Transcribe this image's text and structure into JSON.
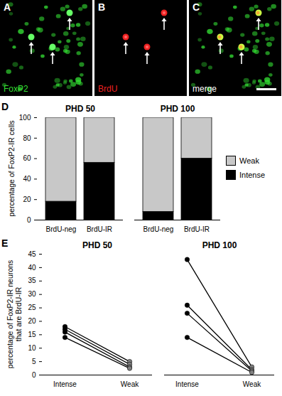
{
  "image_panels": [
    {
      "letter": "A",
      "label": "FoxP2",
      "color": "#33dd33"
    },
    {
      "letter": "B",
      "label": "BrdU",
      "color": "#ee2222"
    },
    {
      "letter": "C",
      "label": "merge",
      "color": "#ffffff"
    }
  ],
  "chart_data": [
    {
      "panel": "D",
      "type": "bar",
      "stacked": true,
      "ylabel": [
        "percentage of FoxP2-IR cells"
      ],
      "ylim": [
        0,
        100
      ],
      "yticks": [
        0,
        20,
        40,
        60,
        80,
        100
      ],
      "legend": "right",
      "facets": [
        {
          "title": "PHD 50",
          "categories": [
            "BrdU-neg",
            "BrdU-IR"
          ],
          "series": [
            {
              "name": "Weak",
              "color": "#c8c8c8",
              "values": [
                82,
                44
              ]
            },
            {
              "name": "Intense",
              "color": "#000000",
              "values": [
                18,
                56
              ]
            }
          ]
        },
        {
          "title": "PHD 100",
          "categories": [
            "BrdU-neg",
            "BrdU-IR"
          ],
          "series": [
            {
              "name": "Weak",
              "color": "#c8c8c8",
              "values": [
                92,
                40
              ]
            },
            {
              "name": "Intense",
              "color": "#000000",
              "values": [
                8,
                60
              ]
            }
          ]
        }
      ]
    },
    {
      "panel": "E",
      "type": "line",
      "marker": "circle",
      "ylabel": [
        "percentage of FoxP2-IR neurons",
        "that are BrdU-IR"
      ],
      "ylim": [
        0,
        45
      ],
      "yticks": [
        0,
        5,
        10,
        15,
        20,
        25,
        30,
        35,
        40,
        45
      ],
      "colors": [
        "#000000",
        "#808080"
      ],
      "facets": [
        {
          "title": "PHD 50",
          "categories": [
            "Intense",
            "Weak"
          ],
          "series": [
            {
              "color": "#000000",
              "values": [
                18,
                5
              ]
            },
            {
              "color": "#000000",
              "values": [
                17,
                4
              ]
            },
            {
              "color": "#000000",
              "values": [
                16,
                3
              ]
            },
            {
              "color": "#000000",
              "values": [
                14,
                2.5
              ]
            }
          ]
        },
        {
          "title": "PHD 100",
          "categories": [
            "Intense",
            "Weak"
          ],
          "series": [
            {
              "color": "#000000",
              "values": [
                43,
                3
              ]
            },
            {
              "color": "#000000",
              "values": [
                26,
                2
              ]
            },
            {
              "color": "#000000",
              "values": [
                23,
                1.5
              ]
            },
            {
              "color": "#000000",
              "values": [
                14,
                1
              ]
            }
          ]
        }
      ]
    }
  ]
}
